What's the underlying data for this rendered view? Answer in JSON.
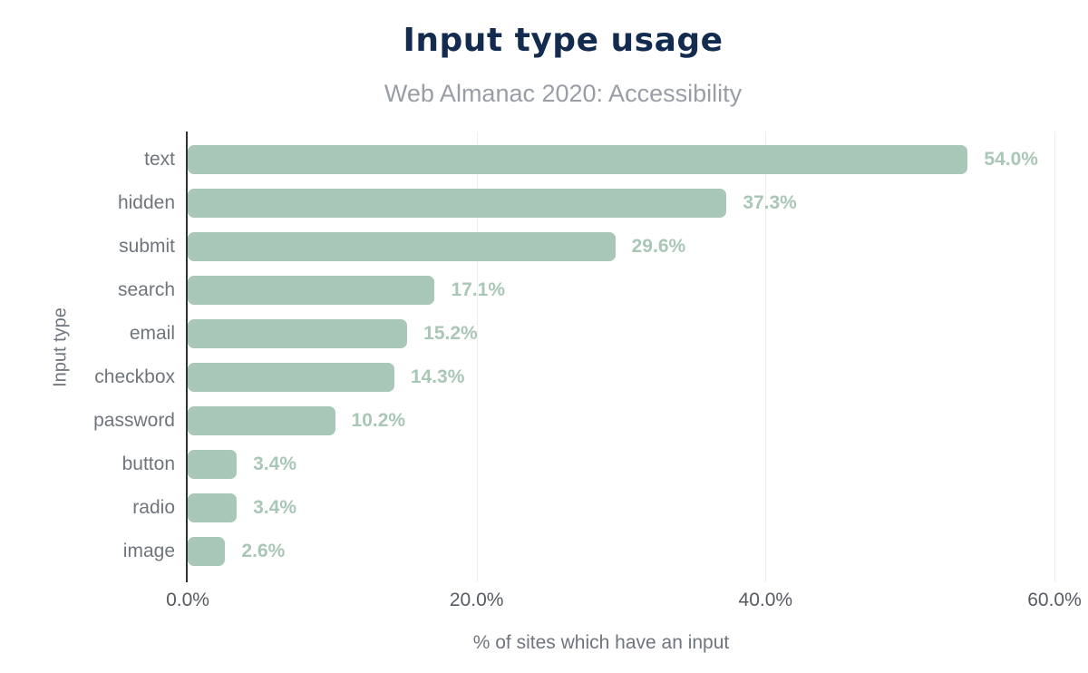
{
  "header": {
    "title": "Input type usage",
    "subtitle": "Web Almanac 2020: Accessibility"
  },
  "chart_data": {
    "type": "bar",
    "orientation": "horizontal",
    "title": "Input type usage",
    "subtitle": "Web Almanac 2020: Accessibility",
    "categories": [
      "text",
      "hidden",
      "submit",
      "search",
      "email",
      "checkbox",
      "password",
      "button",
      "radio",
      "image"
    ],
    "values": [
      54.0,
      37.3,
      29.6,
      17.1,
      15.2,
      14.3,
      10.2,
      3.4,
      3.4,
      2.6
    ],
    "value_labels": [
      "54.0%",
      "37.3%",
      "29.6%",
      "17.1%",
      "15.2%",
      "14.3%",
      "10.2%",
      "3.4%",
      "3.4%",
      "2.6%"
    ],
    "xlabel": "% of sites which have an input",
    "ylabel": "Input type",
    "xlim": [
      0,
      60
    ],
    "x_ticks": [
      {
        "value": 0,
        "label": "0.0%"
      },
      {
        "value": 20,
        "label": "20.0%"
      },
      {
        "value": 40,
        "label": "40.0%"
      },
      {
        "value": 60,
        "label": "60.0%"
      }
    ],
    "grid": true,
    "legend": "none",
    "colors": {
      "bar": "#a9c7b6",
      "value_label": "#a9c7b6",
      "title": "#122b4e",
      "subtitle": "#999ea6",
      "category_label": "#6f757d",
      "tick_label": "#565b62",
      "axis_title": "#6f757d",
      "axis_line": "#2d3237",
      "grid_line": "#ededed",
      "background": "#ffffff"
    }
  }
}
